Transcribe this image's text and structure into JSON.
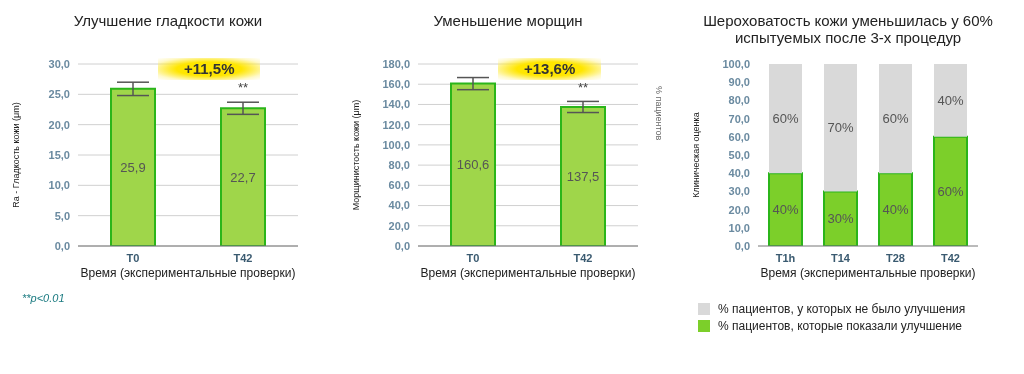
{
  "chart_data": [
    {
      "type": "bar",
      "title": "Улучшение гладкости кожи",
      "xlabel": "Время (экспериментальные проверки)",
      "ylabel": "Ra - Гладкость кожи (μm)",
      "categories": [
        "T0",
        "T42"
      ],
      "series": [
        {
          "color": "#9fd64a",
          "values": [
            25.9,
            22.7
          ],
          "errors": [
            1.1,
            1.0
          ],
          "value_labels": [
            "25,9",
            "22,7"
          ]
        }
      ],
      "ylim": [
        0,
        30
      ],
      "yticks": [
        {
          "value": 0,
          "label": "0,0"
        },
        {
          "value": 5,
          "label": "5,0"
        },
        {
          "value": 10,
          "label": "10,0"
        },
        {
          "value": 15,
          "label": "15,0"
        },
        {
          "value": 20,
          "label": "20,0"
        },
        {
          "value": 25,
          "label": "25,0"
        },
        {
          "value": 30,
          "label": "30,0"
        }
      ],
      "grid": "y",
      "annotations": [
        "+11,5%",
        {
          "text": "**",
          "x": "T42",
          "y": 24.5
        },
        "**p<0.01"
      ]
    },
    {
      "type": "bar",
      "title": "Уменьшение морщин",
      "xlabel": "Время (экспериментальные проверки)",
      "ylabel": "Морщинистость кожи (μm)",
      "y2label": "% пациентов",
      "categories": [
        "T0",
        "T42"
      ],
      "series": [
        {
          "color": "#9fd64a",
          "values": [
            160.6,
            137.5
          ],
          "errors": [
            6,
            5.5
          ],
          "value_labels": [
            "160,6",
            "137,5"
          ]
        }
      ],
      "ylim": [
        0,
        180
      ],
      "yticks": [
        {
          "value": 0,
          "label": "0,0"
        },
        {
          "value": 20,
          "label": "20,0"
        },
        {
          "value": 40,
          "label": "40,0"
        },
        {
          "value": 60,
          "label": "60,0"
        },
        {
          "value": 80,
          "label": "80,0"
        },
        {
          "value": 100,
          "label": "100,0"
        },
        {
          "value": 120,
          "label": "120,0"
        },
        {
          "value": 140,
          "label": "140,0"
        },
        {
          "value": 160,
          "label": "160,0"
        },
        {
          "value": 180,
          "label": "180,0"
        }
      ],
      "grid": "y",
      "annotations": [
        "+13,6%",
        {
          "text": "**",
          "x": "T42",
          "y": 147
        }
      ]
    },
    {
      "type": "bar",
      "title": "Шероховатость кожи уменьшилась у 60% испытуемых после 3-х процедур",
      "xlabel": "Время (экспериментальные проверки)",
      "ylabel": "Клиническая оценка",
      "categories": [
        "T1h",
        "T14",
        "T28",
        "T42"
      ],
      "stacked": true,
      "series": [
        {
          "name": "% пациентов, которые показали улучшение",
          "color": "#7ccf2a",
          "values": [
            40,
            30,
            40,
            60
          ],
          "value_labels": [
            "40%",
            "30%",
            "40%",
            "60%"
          ]
        },
        {
          "name": "% пациентов, у которых не было улучшения",
          "color": "#d9d9d9",
          "values": [
            60,
            70,
            60,
            40
          ],
          "value_labels": [
            "60%",
            "70%",
            "60%",
            "40%"
          ]
        }
      ],
      "ylim": [
        0,
        100
      ],
      "yticks": [
        {
          "value": 0,
          "label": "0,0"
        },
        {
          "value": 10,
          "label": "10,0"
        },
        {
          "value": 20,
          "label": "20,0"
        },
        {
          "value": 30,
          "label": "30,0"
        },
        {
          "value": 40,
          "label": "40,0"
        },
        {
          "value": 50,
          "label": "50,0"
        },
        {
          "value": 60,
          "label": "60,0"
        },
        {
          "value": 70,
          "label": "70,0"
        },
        {
          "value": 80,
          "label": "80,0"
        },
        {
          "value": 90,
          "label": "90,0"
        },
        {
          "value": 100,
          "label": "100,0"
        }
      ],
      "grid": false,
      "legend": "bottom"
    }
  ]
}
